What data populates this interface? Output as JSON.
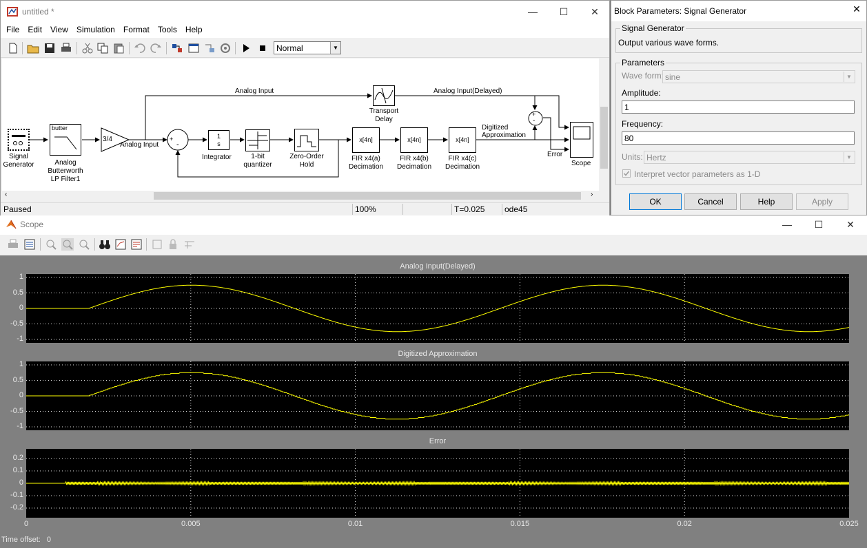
{
  "model_window": {
    "title": "untitled *",
    "menu": [
      "File",
      "Edit",
      "View",
      "Simulation",
      "Format",
      "Tools",
      "Help"
    ],
    "sim_mode": "Normal",
    "status": {
      "state": "Paused",
      "zoom": "100%",
      "empty": "",
      "time": "T=0.025",
      "solver": "ode45"
    },
    "blocks": {
      "signal_generator": "Signal\nGenerator",
      "butter_icon": "butter",
      "filter": "Analog\nButterworth\nLP Filter1",
      "gain": "3/4",
      "integrator_icon": "1\ns",
      "integrator": "Integrator",
      "quantizer": "1-bit\nquantizer",
      "zoh": "Zero-Order\nHold",
      "fir_icon": "x[4n]",
      "fir_a": "FIR x4(a)\nDecimation",
      "fir_b": "FIR x4(b)\nDecimation",
      "fir_c": "FIR x4(c)\nDecimation",
      "transport_delay": "Transport\nDelay",
      "scope": "Scope",
      "plus": "+",
      "minus": "-"
    },
    "signals": {
      "analog_input_top": "Analog Input",
      "analog_input": "Analog Input",
      "analog_input_delayed": "Analog Input(Delayed)",
      "digitized": "Digitized\nApproximation",
      "error": "Error"
    }
  },
  "dialog": {
    "title": "Block Parameters: Signal Generator",
    "group_title": "Signal Generator",
    "description": "Output various wave forms.",
    "params_title": "Parameters",
    "wave_form_label": "Wave form:",
    "wave_form_value": "sine",
    "amplitude_label": "Amplitude:",
    "amplitude_value": "1",
    "frequency_label": "Frequency:",
    "frequency_value": "80",
    "units_label": "Units:",
    "units_value": "Hertz",
    "interpret_label": "Interpret vector parameters as 1-D",
    "buttons": {
      "ok": "OK",
      "cancel": "Cancel",
      "help": "Help",
      "apply": "Apply"
    }
  },
  "scope_window": {
    "title": "Scope",
    "time_offset_label": "Time offset:",
    "time_offset_value": "0"
  },
  "chart_data": [
    {
      "type": "line",
      "title": "Analog Input(Delayed)",
      "x_range": [
        0,
        0.025
      ],
      "ylim": [
        -1,
        1
      ],
      "yticks": [
        "1",
        "0.5",
        "0",
        "-0.5",
        "-1"
      ],
      "xticks": [
        "0",
        "0.005",
        "0.01",
        "0.015",
        "0.02",
        "0.025"
      ],
      "grid": true,
      "series": [
        {
          "amplitude": 0.75,
          "frequency_hz": 80,
          "delay_s": 0.0019,
          "color": "#ffff00"
        }
      ]
    },
    {
      "type": "line",
      "title": "Digitized Approximation",
      "x_range": [
        0,
        0.025
      ],
      "ylim": [
        -1,
        1
      ],
      "yticks": [
        "1",
        "0.5",
        "0",
        "-0.5",
        "-1"
      ],
      "grid": true,
      "series": [
        {
          "amplitude": 0.75,
          "frequency_hz": 80,
          "delay_s": 0.0019,
          "color": "#ffff00"
        }
      ]
    },
    {
      "type": "line",
      "title": "Error",
      "x_range": [
        0,
        0.025
      ],
      "ylim": [
        -0.25,
        0.25
      ],
      "yticks": [
        "0.2",
        "0.1",
        "0",
        "-0.1",
        "-0.2"
      ],
      "grid": true,
      "series": [
        {
          "peak_error": 0.012,
          "color": "#ffff00"
        }
      ]
    }
  ]
}
